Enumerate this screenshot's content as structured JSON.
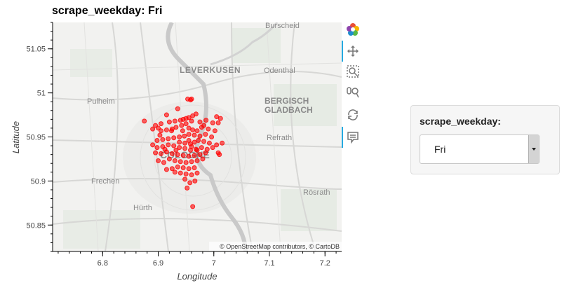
{
  "title": "scrape_weekday: Fri",
  "widget": {
    "label": "scrape_weekday:",
    "selected": "Fri"
  },
  "map": {
    "attribution": "© OpenStreetMap contributors, © CartoDB",
    "place_labels": [
      "Burscheid",
      "LEVERKUSEN",
      "Odenthal",
      "Pulheim",
      "BERGISCH",
      "GLADBACH",
      "Refrath",
      "COLOGNE",
      "Frechen",
      "Rösrath",
      "Hürth"
    ]
  },
  "toolbar": {
    "icons": [
      "bokeh-logo-icon",
      "pan-icon",
      "box-zoom-icon",
      "wheel-zoom-icon",
      "reset-icon",
      "hover-icon"
    ]
  },
  "colors": {
    "point": "#ff0000",
    "accent": "#26aae1"
  },
  "chart_data": {
    "type": "scatter",
    "title": "scrape_weekday: Fri",
    "xlabel": "Longitude",
    "ylabel": "Latitude",
    "xlim": [
      6.71,
      7.23
    ],
    "ylim": [
      50.82,
      51.08
    ],
    "xticks": [
      "6.8",
      "6.9",
      "7",
      "7.1",
      "7.2"
    ],
    "yticks": [
      "50.85",
      "50.9",
      "50.95",
      "51",
      "51.05"
    ],
    "grid": false,
    "series": [
      {
        "color": "#ff0000",
        "points": [
          [
            6.953,
            50.993
          ],
          [
            6.96,
            50.993
          ],
          [
            6.958,
            50.992
          ],
          [
            6.935,
            50.982
          ],
          [
            6.915,
            50.975
          ],
          [
            6.968,
            50.976
          ],
          [
            6.962,
            50.974
          ],
          [
            6.955,
            50.972
          ],
          [
            6.95,
            50.971
          ],
          [
            6.945,
            50.97
          ],
          [
            6.94,
            50.969
          ],
          [
            6.93,
            50.968
          ],
          [
            6.92,
            50.967
          ],
          [
            6.905,
            50.965
          ],
          [
            6.895,
            50.963
          ],
          [
            6.875,
            50.968
          ],
          [
            6.96,
            50.968
          ],
          [
            6.975,
            50.967
          ],
          [
            7.005,
            50.973
          ],
          [
            7.012,
            50.971
          ],
          [
            7.008,
            50.966
          ],
          [
            6.998,
            50.966
          ],
          [
            6.95,
            50.965
          ],
          [
            6.942,
            50.963
          ],
          [
            6.932,
            50.961
          ],
          [
            6.925,
            50.959
          ],
          [
            6.915,
            50.958
          ],
          [
            6.905,
            50.957
          ],
          [
            6.9,
            50.96
          ],
          [
            6.89,
            50.959
          ],
          [
            6.955,
            50.96
          ],
          [
            6.962,
            50.958
          ],
          [
            6.97,
            50.957
          ],
          [
            6.982,
            50.963
          ],
          [
            6.99,
            50.959
          ],
          [
            7.002,
            50.957
          ],
          [
            6.996,
            50.95
          ],
          [
            6.985,
            50.953
          ],
          [
            6.975,
            50.951
          ],
          [
            6.965,
            50.952
          ],
          [
            6.955,
            50.953
          ],
          [
            6.947,
            50.951
          ],
          [
            6.938,
            50.95
          ],
          [
            6.928,
            50.949
          ],
          [
            6.918,
            50.948
          ],
          [
            6.908,
            50.947
          ],
          [
            6.898,
            50.946
          ],
          [
            6.955,
            50.946
          ],
          [
            6.948,
            50.943
          ],
          [
            6.958,
            50.942
          ],
          [
            6.965,
            50.944
          ],
          [
            6.972,
            50.946
          ],
          [
            6.982,
            50.945
          ],
          [
            6.992,
            50.943
          ],
          [
            7.005,
            50.941
          ],
          [
            7.015,
            50.943
          ],
          [
            6.998,
            50.938
          ],
          [
            6.988,
            50.936
          ],
          [
            6.978,
            50.938
          ],
          [
            6.968,
            50.936
          ],
          [
            6.958,
            50.935
          ],
          [
            6.948,
            50.937
          ],
          [
            6.938,
            50.938
          ],
          [
            6.928,
            50.94
          ],
          [
            6.918,
            50.941
          ],
          [
            6.908,
            50.939
          ],
          [
            6.898,
            50.938
          ],
          [
            6.89,
            50.941
          ],
          [
            6.895,
            50.932
          ],
          [
            6.905,
            50.931
          ],
          [
            6.915,
            50.933
          ],
          [
            6.925,
            50.931
          ],
          [
            6.935,
            50.93
          ],
          [
            6.945,
            50.929
          ],
          [
            6.955,
            50.928
          ],
          [
            6.965,
            50.929
          ],
          [
            6.975,
            50.93
          ],
          [
            6.985,
            50.932
          ],
          [
            7.008,
            50.932
          ],
          [
            7.01,
            50.93
          ],
          [
            6.92,
            50.925
          ],
          [
            6.93,
            50.923
          ],
          [
            6.94,
            50.922
          ],
          [
            6.95,
            50.921
          ],
          [
            6.96,
            50.922
          ],
          [
            6.97,
            50.923
          ],
          [
            6.98,
            50.925
          ],
          [
            6.91,
            50.921
          ],
          [
            6.9,
            50.923
          ],
          [
            6.935,
            50.916
          ],
          [
            6.945,
            50.915
          ],
          [
            6.955,
            50.914
          ],
          [
            6.965,
            50.915
          ],
          [
            6.925,
            50.914
          ],
          [
            6.915,
            50.913
          ],
          [
            6.95,
            50.908
          ],
          [
            6.96,
            50.907
          ],
          [
            6.94,
            50.909
          ],
          [
            6.93,
            50.91
          ],
          [
            6.97,
            50.909
          ],
          [
            6.948,
            50.902
          ],
          [
            6.957,
            50.898
          ],
          [
            6.966,
            50.9
          ],
          [
            6.952,
            50.892
          ],
          [
            6.962,
            50.871
          ],
          [
            6.97,
            50.935
          ],
          [
            6.96,
            50.939
          ],
          [
            6.944,
            50.957
          ],
          [
            6.986,
            50.969
          ],
          [
            6.938,
            50.944
          ],
          [
            6.932,
            50.935
          ],
          [
            6.978,
            50.961
          ],
          [
            6.924,
            50.957
          ],
          [
            6.912,
            50.936
          ],
          [
            6.903,
            50.952
          ]
        ]
      }
    ]
  }
}
